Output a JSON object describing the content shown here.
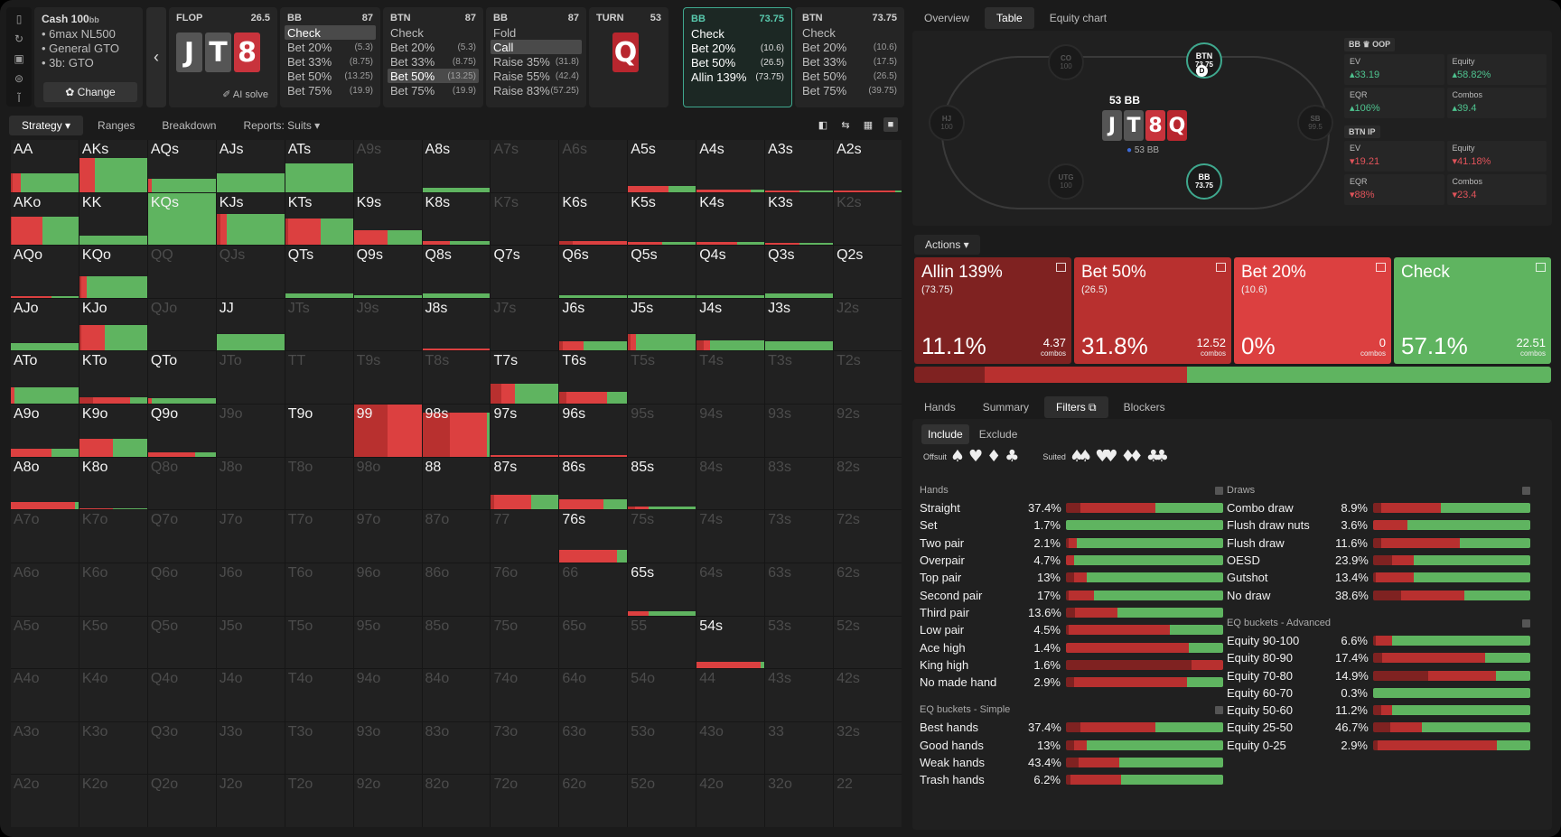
{
  "colors": {
    "green": "#64b964",
    "red": "#d9413f",
    "darkred": "#9a2b2b",
    "allin": "#7f2221",
    "bet50": "#b8302f",
    "bet20": "#dc4040",
    "check": "#5fb460"
  },
  "nav_icons": [
    "bookmark-icon",
    "history-icon",
    "save-icon",
    "gamepad-icon",
    "text-cursor-icon"
  ],
  "nav_glyphs": [
    "▯",
    "↻",
    "▣",
    "⊜",
    "Ĩ"
  ],
  "cash": {
    "title": "Cash 100",
    "unit": "bb",
    "items": [
      "• 6max NL500",
      "• General GTO",
      "• 3b: GTO"
    ],
    "change_label": "✿ Change"
  },
  "back_label": "‹",
  "flop": {
    "label": "FLOP",
    "pot": "26.5",
    "cards": [
      {
        "r": "J",
        "s": "s"
      },
      {
        "r": "T",
        "s": "s"
      },
      {
        "r": "8",
        "s": "h"
      }
    ],
    "ai_label": "✐ AI solve"
  },
  "nodes": [
    {
      "player": "BB",
      "stack": "87",
      "actions": [
        {
          "a": "Check",
          "s": "",
          "sel": true
        },
        {
          "a": "Bet 20%",
          "s": "(5.3)"
        },
        {
          "a": "Bet 33%",
          "s": "(8.75)"
        },
        {
          "a": "Bet 50%",
          "s": "(13.25)"
        },
        {
          "a": "Bet 75%",
          "s": "(19.9)"
        }
      ]
    },
    {
      "player": "BTN",
      "stack": "87",
      "actions": [
        {
          "a": "Check",
          "s": ""
        },
        {
          "a": "Bet 20%",
          "s": "(5.3)"
        },
        {
          "a": "Bet 33%",
          "s": "(8.75)"
        },
        {
          "a": "Bet 50%",
          "s": "(13.25)",
          "sel": true
        },
        {
          "a": "Bet 75%",
          "s": "(19.9)"
        }
      ]
    },
    {
      "player": "BB",
      "stack": "87",
      "actions": [
        {
          "a": "Fold",
          "s": ""
        },
        {
          "a": "Call",
          "s": "",
          "sel": true
        },
        {
          "a": "Raise 35%",
          "s": "(31.8)"
        },
        {
          "a": "Raise 55%",
          "s": "(42.4)"
        },
        {
          "a": "Raise 83%",
          "s": "(57.25)"
        }
      ]
    }
  ],
  "turn": {
    "label": "TURN",
    "pot": "53",
    "card": "Q"
  },
  "active_node": {
    "player": "BB",
    "stack": "73.75",
    "actions": [
      {
        "a": "Check",
        "s": ""
      },
      {
        "a": "Bet 20%",
        "s": "(10.6)"
      },
      {
        "a": "Bet 50%",
        "s": "(26.5)"
      },
      {
        "a": "Allin 139%",
        "s": "(73.75)"
      }
    ]
  },
  "last_node": {
    "player": "BTN",
    "stack": "73.75",
    "actions": [
      {
        "a": "Check",
        "s": ""
      },
      {
        "a": "Bet 20%",
        "s": "(10.6)"
      },
      {
        "a": "Bet 33%",
        "s": "(17.5)"
      },
      {
        "a": "Bet 50%",
        "s": "(26.5)"
      },
      {
        "a": "Bet 75%",
        "s": "(39.75)"
      }
    ]
  },
  "grid_tabs": [
    "Strategy ▾",
    "Ranges",
    "Breakdown",
    "Reports: Suits ▾"
  ],
  "view_icons": [
    "◧",
    "⇆",
    "▦",
    "■"
  ],
  "hands": [
    "AA",
    "AKs",
    "AQs",
    "AJs",
    "ATs",
    "A9s",
    "A8s",
    "A7s",
    "A6s",
    "A5s",
    "A4s",
    "A3s",
    "A2s",
    "AKo",
    "KK",
    "KQs",
    "KJs",
    "KTs",
    "K9s",
    "K8s",
    "K7s",
    "K6s",
    "K5s",
    "K4s",
    "K3s",
    "K2s",
    "AQo",
    "KQo",
    "QQ",
    "QJs",
    "QTs",
    "Q9s",
    "Q8s",
    "Q7s",
    "Q6s",
    "Q5s",
    "Q4s",
    "Q3s",
    "Q2s",
    "AJo",
    "KJo",
    "QJo",
    "JJ",
    "JTs",
    "J9s",
    "J8s",
    "J7s",
    "J6s",
    "J5s",
    "J4s",
    "J3s",
    "J2s",
    "ATo",
    "KTo",
    "QTo",
    "JTo",
    "TT",
    "T9s",
    "T8s",
    "T7s",
    "T6s",
    "T5s",
    "T4s",
    "T3s",
    "T2s",
    "A9o",
    "K9o",
    "Q9o",
    "J9o",
    "T9o",
    "99",
    "98s",
    "97s",
    "96s",
    "95s",
    "94s",
    "93s",
    "92s",
    "A8o",
    "K8o",
    "Q8o",
    "J8o",
    "T8o",
    "98o",
    "88",
    "87s",
    "86s",
    "85s",
    "84s",
    "83s",
    "82s",
    "A7o",
    "K7o",
    "Q7o",
    "J7o",
    "T7o",
    "97o",
    "87o",
    "77",
    "76s",
    "75s",
    "74s",
    "73s",
    "72s",
    "A6o",
    "K6o",
    "Q6o",
    "J6o",
    "T6o",
    "96o",
    "86o",
    "76o",
    "66",
    "65s",
    "64s",
    "63s",
    "62s",
    "A5o",
    "K5o",
    "Q5o",
    "J5o",
    "T5o",
    "95o",
    "85o",
    "75o",
    "65o",
    "55",
    "54s",
    "53s",
    "52s",
    "A4o",
    "K4o",
    "Q4o",
    "J4o",
    "T4o",
    "94o",
    "84o",
    "74o",
    "64o",
    "54o",
    "44",
    "43s",
    "42s",
    "A3o",
    "K3o",
    "Q3o",
    "J3o",
    "T3o",
    "93o",
    "83o",
    "73o",
    "63o",
    "53o",
    "43o",
    "33",
    "32s",
    "A2o",
    "K2o",
    "Q2o",
    "J2o",
    "T2o",
    "92o",
    "82o",
    "72o",
    "62o",
    "52o",
    "42o",
    "32o",
    "22"
  ],
  "dim_hands": [
    "A9s",
    "A7s",
    "A6s",
    "K7s",
    "K2s",
    "QQ",
    "QJs",
    "QJo",
    "JTs",
    "J9s",
    "J7s",
    "J2s",
    "JTo",
    "TT",
    "T9s",
    "T8s",
    "T5s",
    "T4s",
    "T3s",
    "T2s",
    "J9o",
    "95s",
    "94s",
    "93s",
    "92s",
    "Q8o",
    "J8o",
    "T8o",
    "98o",
    "84s",
    "83s",
    "82s",
    "A7o",
    "K7o",
    "Q7o",
    "J7o",
    "T7o",
    "97o",
    "87o",
    "77",
    "75s",
    "74s",
    "73s",
    "72s",
    "A6o",
    "K6o",
    "Q6o",
    "J6o",
    "T6o",
    "96o",
    "86o",
    "76o",
    "66",
    "64s",
    "63s",
    "62s",
    "A5o",
    "K5o",
    "Q5o",
    "J5o",
    "T5o",
    "95o",
    "85o",
    "75o",
    "65o",
    "55",
    "53s",
    "52s",
    "A4o",
    "K4o",
    "Q4o",
    "J4o",
    "T4o",
    "94o",
    "84o",
    "74o",
    "64o",
    "54o",
    "44",
    "43s",
    "42s",
    "A3o",
    "K3o",
    "Q3o",
    "J3o",
    "T3o",
    "93o",
    "83o",
    "73o",
    "63o",
    "53o",
    "43o",
    "33",
    "32s",
    "A2o",
    "K2o",
    "Q2o",
    "J2o",
    "T2o",
    "92o",
    "82o",
    "72o",
    "62o",
    "52o",
    "42o",
    "32o",
    "22"
  ],
  "strategy": {
    "AA": {
      "f": 0.35,
      "m": [
        0,
        0.03,
        0.12,
        0.85
      ]
    },
    "AKs": {
      "f": 0.65,
      "m": [
        0,
        0,
        0.23,
        0.77
      ]
    },
    "AQs": {
      "f": 0.25,
      "m": [
        0,
        0,
        0.05,
        0.95
      ]
    },
    "AJs": {
      "f": 0.35,
      "m": [
        0,
        0,
        0,
        1
      ]
    },
    "ATs": {
      "f": 0.55,
      "m": [
        0,
        0,
        0,
        1
      ]
    },
    "A8s": {
      "f": 0.08,
      "m": [
        0,
        0,
        0,
        1
      ]
    },
    "A5s": {
      "f": 0.12,
      "m": [
        0,
        0,
        0.6,
        0.4
      ]
    },
    "A4s": {
      "f": 0.04,
      "m": [
        0,
        0,
        0.8,
        0.2
      ]
    },
    "A3s": {
      "f": 0.03,
      "m": [
        0,
        0,
        0.5,
        0.5
      ]
    },
    "A2s": {
      "f": 0.03,
      "m": [
        0,
        0,
        0.9,
        0.1
      ]
    },
    "AKo": {
      "f": 0.55,
      "m": [
        0,
        0.02,
        0.45,
        0.53
      ]
    },
    "KK": {
      "f": 0.18,
      "m": [
        0,
        0,
        0,
        1
      ]
    },
    "KQs": {
      "f": 1,
      "m": [
        0,
        0,
        0,
        1
      ]
    },
    "KJs": {
      "f": 0.6,
      "m": [
        0,
        0.05,
        0.1,
        0.85
      ]
    },
    "KTs": {
      "f": 0.5,
      "m": [
        0,
        0.05,
        0.48,
        0.47
      ]
    },
    "K9s": {
      "f": 0.28,
      "m": [
        0,
        0,
        0.5,
        0.5
      ]
    },
    "K8s": {
      "f": 0.08,
      "m": [
        0,
        0,
        0.4,
        0.6
      ]
    },
    "K6s": {
      "f": 0.08,
      "m": [
        0,
        0.2,
        0.8,
        0
      ]
    },
    "K5s": {
      "f": 0.06,
      "m": [
        0,
        0,
        0.5,
        0.5
      ]
    },
    "K4s": {
      "f": 0.05,
      "m": [
        0,
        0,
        0.6,
        0.4
      ]
    },
    "K3s": {
      "f": 0.04,
      "m": [
        0,
        0,
        0.5,
        0.5
      ]
    },
    "AQo": {
      "f": 0.03,
      "m": [
        0,
        0,
        0.6,
        0.4
      ]
    },
    "KQo": {
      "f": 0.42,
      "m": [
        0,
        0.03,
        0.08,
        0.89
      ]
    },
    "QTs": {
      "f": 0.08,
      "m": [
        0,
        0,
        0,
        1
      ]
    },
    "Q9s": {
      "f": 0.05,
      "m": [
        0,
        0,
        0,
        1
      ]
    },
    "Q8s": {
      "f": 0.08,
      "m": [
        0,
        0,
        0,
        1
      ]
    },
    "Q6s": {
      "f": 0.05,
      "m": [
        0,
        0,
        0,
        1
      ]
    },
    "Q5s": {
      "f": 0.05,
      "m": [
        0,
        0,
        0,
        1
      ]
    },
    "Q4s": {
      "f": 0.05,
      "m": [
        0,
        0,
        0,
        1
      ]
    },
    "Q3s": {
      "f": 0.08,
      "m": [
        0,
        0,
        0,
        1
      ]
    },
    "AJo": {
      "f": 0.14,
      "m": [
        0,
        0,
        0,
        1
      ]
    },
    "KJo": {
      "f": 0.5,
      "m": [
        0,
        0.03,
        0.35,
        0.62
      ]
    },
    "JJ": {
      "f": 0.32,
      "m": [
        0,
        0,
        0,
        1
      ]
    },
    "J8s": {
      "f": 0.05,
      "m": [
        0,
        0,
        1,
        0
      ]
    },
    "J6s": {
      "f": 0.18,
      "m": [
        0,
        0.05,
        0.3,
        0.65
      ]
    },
    "J5s": {
      "f": 0.32,
      "m": [
        0,
        0.04,
        0.08,
        0.88
      ]
    },
    "J4s": {
      "f": 0.2,
      "m": [
        0,
        0.1,
        0.1,
        0.8
      ]
    },
    "J3s": {
      "f": 0.18,
      "m": [
        0,
        0,
        0,
        1
      ]
    },
    "ATo": {
      "f": 0.32,
      "m": [
        0,
        0,
        0.05,
        0.95
      ]
    },
    "KTo": {
      "f": 0.12,
      "m": [
        0,
        0.2,
        0.55,
        0.25
      ]
    },
    "QTo": {
      "f": 0.1,
      "m": [
        0,
        0,
        0.05,
        0.95
      ]
    },
    "T7s": {
      "f": 0.38,
      "m": [
        0,
        0.15,
        0.2,
        0.65
      ]
    },
    "T6s": {
      "f": 0.22,
      "m": [
        0,
        0.1,
        0.6,
        0.3
      ]
    },
    "A9o": {
      "f": 0.15,
      "m": [
        0,
        0,
        0.6,
        0.4
      ]
    },
    "K9o": {
      "f": 0.35,
      "m": [
        0,
        0,
        0.5,
        0.5
      ]
    },
    "Q9o": {
      "f": 0.08,
      "m": [
        0,
        0,
        0.7,
        0.3
      ]
    },
    "99": {
      "f": 1,
      "m": [
        0,
        0.5,
        0.5,
        0
      ]
    },
    "98s": {
      "f": 0.85,
      "m": [
        0,
        0.4,
        0.55,
        0.05
      ]
    },
    "97s": {
      "f": 0.03,
      "m": [
        0,
        0,
        1,
        0
      ]
    },
    "96s": {
      "f": 0.03,
      "m": [
        0,
        0,
        1,
        0
      ]
    },
    "A8o": {
      "f": 0.14,
      "m": [
        0,
        0,
        0.95,
        0.05
      ]
    },
    "K8o": {
      "f": 0.03,
      "m": [
        0,
        0,
        0.5,
        0.5
      ]
    },
    "87s": {
      "f": 0.28,
      "m": [
        0,
        0.05,
        0.55,
        0.4
      ]
    },
    "86s": {
      "f": 0.2,
      "m": [
        0,
        0,
        0.65,
        0.35
      ]
    },
    "85s": {
      "f": 0.06,
      "m": [
        0,
        0.1,
        0.2,
        0.7
      ]
    },
    "76s": {
      "f": 0.25,
      "m": [
        0,
        0,
        0.85,
        0.15
      ]
    },
    "65s": {
      "f": 0.08,
      "m": [
        0,
        0,
        0.3,
        0.7
      ]
    },
    "54s": {
      "f": 0.12,
      "m": [
        0,
        0,
        0.95,
        0.05
      ]
    }
  },
  "tabs_top": [
    "Overview",
    "Table",
    "Equity chart"
  ],
  "table": {
    "pot": "53 BB",
    "board": [
      "J",
      "T",
      "8",
      "Q"
    ],
    "chip_text": "53 BB",
    "dealer": "D",
    "seats": [
      {
        "pos": "CO",
        "stack": "100",
        "live": false
      },
      {
        "pos": "BTN",
        "stack": "73.75",
        "live": true
      },
      {
        "pos": "HJ",
        "stack": "100",
        "live": false
      },
      {
        "pos": "SB",
        "stack": "99.5",
        "live": false
      },
      {
        "pos": "UTG",
        "stack": "100",
        "live": false
      },
      {
        "pos": "BB",
        "stack": "73.75",
        "live": true
      }
    ]
  },
  "stats": [
    {
      "title": "BB ♛ OOP",
      "items": [
        {
          "k": "EV",
          "v": "33.19",
          "c": "pos"
        },
        {
          "k": "Equity",
          "v": "58.82%",
          "c": "pos"
        },
        {
          "k": "EQR",
          "v": "106%",
          "c": "pos"
        },
        {
          "k": "Combos",
          "v": "39.4",
          "c": "pos"
        }
      ]
    },
    {
      "title": "BTN IP",
      "items": [
        {
          "k": "EV",
          "v": "19.21",
          "c": "neg"
        },
        {
          "k": "Equity",
          "v": "41.18%",
          "c": "neg"
        },
        {
          "k": "EQR",
          "v": "88%",
          "c": "neg"
        },
        {
          "k": "Combos",
          "v": "23.4",
          "c": "neg"
        }
      ]
    }
  ],
  "actions_title": "Actions ▾",
  "action_cards": [
    {
      "name": "Allin 139%",
      "sub": "(73.75)",
      "pct": "11.1%",
      "combos": "4.37",
      "clabel": "combos",
      "color": "#7f2221"
    },
    {
      "name": "Bet 50%",
      "sub": "(26.5)",
      "pct": "31.8%",
      "combos": "12.52",
      "clabel": "combos",
      "color": "#b8302f"
    },
    {
      "name": "Bet 20%",
      "sub": "(10.6)",
      "pct": "0%",
      "combos": "0",
      "clabel": "combos",
      "color": "#dc4040"
    },
    {
      "name": "Check",
      "sub": "",
      "pct": "57.1%",
      "combos": "22.51",
      "clabel": "combos",
      "color": "#5fb460"
    }
  ],
  "freq": [
    0.111,
    0.318,
    0,
    0.571
  ],
  "bottom_tabs": [
    "Hands",
    "Summary",
    "Filters ⧉",
    "Blockers"
  ],
  "include": [
    "Include",
    "Exclude"
  ],
  "suit_filter": {
    "offsuit": "Offsuit",
    "suited": "Suited",
    "off_glyphs": [
      "♠",
      "♥",
      "♦",
      "♣"
    ],
    "suited_glyphs": [
      "♠♠",
      "♥♥",
      "♦♦",
      "♣♣"
    ]
  },
  "hands_section": {
    "title": "Hands",
    "rows": [
      {
        "n": "Straight",
        "p": "37.4%",
        "m": [
          0.09,
          0.48,
          0,
          0.43
        ]
      },
      {
        "n": "Set",
        "p": "1.7%",
        "m": [
          0,
          0,
          0,
          1
        ]
      },
      {
        "n": "Two pair",
        "p": "2.1%",
        "m": [
          0.02,
          0.05,
          0,
          0.93
        ]
      },
      {
        "n": "Overpair",
        "p": "4.7%",
        "m": [
          0,
          0.05,
          0,
          0.95
        ]
      },
      {
        "n": "Top pair",
        "p": "13%",
        "m": [
          0.05,
          0.08,
          0,
          0.87
        ]
      },
      {
        "n": "Second pair",
        "p": "17%",
        "m": [
          0.02,
          0.16,
          0,
          0.82
        ]
      },
      {
        "n": "Third pair",
        "p": "13.6%",
        "m": [
          0.06,
          0.27,
          0,
          0.67
        ]
      },
      {
        "n": "Low pair",
        "p": "4.5%",
        "m": [
          0.02,
          0.64,
          0,
          0.34
        ]
      },
      {
        "n": "Ace high",
        "p": "1.4%",
        "m": [
          0,
          0.78,
          0,
          0.22
        ]
      },
      {
        "n": "King high",
        "p": "1.6%",
        "m": [
          0.8,
          0.2,
          0,
          0
        ]
      },
      {
        "n": "No made hand",
        "p": "2.9%",
        "m": [
          0.05,
          0.72,
          0,
          0.23
        ]
      }
    ]
  },
  "eq_simple": {
    "title": "EQ buckets - Simple",
    "rows": [
      {
        "n": "Best hands",
        "p": "37.4%",
        "m": [
          0.09,
          0.48,
          0,
          0.43
        ]
      },
      {
        "n": "Good hands",
        "p": "13%",
        "m": [
          0.05,
          0.08,
          0,
          0.87
        ]
      },
      {
        "n": "Weak hands",
        "p": "43.4%",
        "m": [
          0.08,
          0.26,
          0,
          0.66
        ]
      },
      {
        "n": "Trash hands",
        "p": "6.2%",
        "m": [
          0.03,
          0.32,
          0,
          0.65
        ]
      }
    ]
  },
  "draws_section": {
    "title": "Draws",
    "rows": [
      {
        "n": "Combo draw",
        "p": "8.9%",
        "m": [
          0.05,
          0.38,
          0,
          0.57
        ]
      },
      {
        "n": "Flush draw nuts",
        "p": "3.6%",
        "m": [
          0,
          0.22,
          0,
          0.78
        ]
      },
      {
        "n": "Flush draw",
        "p": "11.6%",
        "m": [
          0.05,
          0.5,
          0,
          0.45
        ]
      },
      {
        "n": "OESD",
        "p": "23.9%",
        "m": [
          0.12,
          0.14,
          0,
          0.74
        ]
      },
      {
        "n": "Gutshot",
        "p": "13.4%",
        "m": [
          0.02,
          0.24,
          0,
          0.74
        ]
      },
      {
        "n": "No draw",
        "p": "38.6%",
        "m": [
          0.18,
          0.4,
          0,
          0.42
        ]
      }
    ]
  },
  "eq_advanced": {
    "title": "EQ buckets - Advanced",
    "rows": [
      {
        "n": "Equity 90-100",
        "p": "6.6%",
        "m": [
          0.02,
          0.1,
          0,
          0.88
        ]
      },
      {
        "n": "Equity 80-90",
        "p": "17.4%",
        "m": [
          0.06,
          0.65,
          0,
          0.29
        ]
      },
      {
        "n": "Equity 70-80",
        "p": "14.9%",
        "m": [
          0.35,
          0.43,
          0,
          0.22
        ]
      },
      {
        "n": "Equity 60-70",
        "p": "0.3%",
        "m": [
          0,
          0,
          0,
          1
        ]
      },
      {
        "n": "Equity 50-60",
        "p": "11.2%",
        "m": [
          0.05,
          0.07,
          0,
          0.88
        ]
      },
      {
        "n": "Equity 25-50",
        "p": "46.7%",
        "m": [
          0.11,
          0.2,
          0,
          0.69
        ]
      },
      {
        "n": "Equity 0-25",
        "p": "2.9%",
        "m": [
          0.03,
          0.76,
          0,
          0.21
        ]
      }
    ]
  }
}
